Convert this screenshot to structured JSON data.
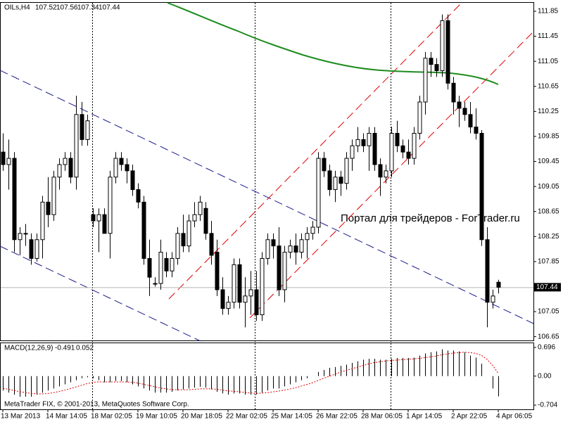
{
  "chart_data": {
    "type": "candlestick",
    "symbol": "OILs,H4",
    "categories": [
      "13 Mar 2013",
      null,
      null,
      null,
      null,
      null,
      null,
      null,
      "14 Mar 14:05",
      null,
      null,
      null,
      null,
      null,
      null,
      null,
      "18 Mar 02:05",
      null,
      null,
      null,
      null,
      null,
      null,
      null,
      "19 Mar 10:05",
      null,
      null,
      null,
      null,
      null,
      null,
      null,
      "20 Mar 18:05",
      null,
      null,
      null,
      null,
      null,
      null,
      null,
      "22 Mar 02:05",
      null,
      null,
      null,
      null,
      null,
      null,
      null,
      "25 Mar 14:05",
      null,
      null,
      null,
      null,
      null,
      null,
      null,
      "26 Mar 22:05",
      null,
      null,
      null,
      null,
      null,
      null,
      null,
      "28 Mar 06:05",
      null,
      null,
      null,
      null,
      null,
      null,
      null,
      "1 Apr 14:05",
      null,
      null,
      null,
      null,
      null,
      null,
      null,
      "2 Apr 22:05",
      null,
      null,
      null,
      null,
      null,
      null,
      null,
      "4 Apr 06:05"
    ],
    "open": [
      109.6,
      109.4,
      109.5,
      108.2,
      108.3,
      108.2,
      107.9,
      108.2,
      108.8,
      108.6,
      109.2,
      109.4,
      109.5,
      109.2,
      110.2,
      109.8,
      108.6,
      108.5,
      108.6,
      108.3,
      109.2,
      109.5,
      109.4,
      109.3,
      109.0,
      108.8,
      107.9,
      107.5,
      107.5,
      107.9,
      107.7,
      107.9,
      108.3,
      108.1,
      108.5,
      108.6,
      108.7,
      108.3,
      108.0,
      107.4,
      107.1,
      107.2,
      107.8,
      107.2,
      107.3,
      107.4,
      107.0,
      107.9,
      108.2,
      108.1,
      107.4,
      108.0,
      108.1,
      108.0,
      108.2,
      108.3,
      108.4,
      109.5,
      109.3,
      109.0,
      109.2,
      109.1,
      109.5,
      109.7,
      109.8,
      109.7,
      109.9,
      109.4,
      109.2,
      109.3,
      109.9,
      109.7,
      109.6,
      109.5,
      109.9,
      110.4,
      111.1,
      111.0,
      110.9,
      111.7,
      110.7,
      110.4,
      110.3,
      110.2,
      110.0,
      109.9,
      108.2,
      107.2,
      107.52
    ],
    "high": [
      109.9,
      109.8,
      109.6,
      108.4,
      108.45,
      108.3,
      108.3,
      108.9,
      109.2,
      109.3,
      109.5,
      109.6,
      109.6,
      110.5,
      110.4,
      110.2,
      108.7,
      108.7,
      108.7,
      109.3,
      109.6,
      109.6,
      109.5,
      109.4,
      109.1,
      108.9,
      108.2,
      107.6,
      108.2,
      108.0,
      108.0,
      108.4,
      108.6,
      108.6,
      108.8,
      108.9,
      108.8,
      108.5,
      108.2,
      107.6,
      107.3,
      107.9,
      107.9,
      107.6,
      107.7,
      107.7,
      108.0,
      108.3,
      108.3,
      108.4,
      108.1,
      108.2,
      108.3,
      108.3,
      108.4,
      108.5,
      109.6,
      109.6,
      109.4,
      109.3,
      109.3,
      109.6,
      109.8,
      110.0,
      109.9,
      110.0,
      110.0,
      109.5,
      109.4,
      110.0,
      110.1,
      109.8,
      109.8,
      110.0,
      110.5,
      111.2,
      111.2,
      111.1,
      111.8,
      111.8,
      110.8,
      110.5,
      110.4,
      110.4,
      110.3,
      109.95,
      108.4,
      107.4,
      107.56
    ],
    "low": [
      109.3,
      109.0,
      108.0,
      107.95,
      108.1,
      107.8,
      107.85,
      107.9,
      108.4,
      108.5,
      109.0,
      109.3,
      109.1,
      109.0,
      109.7,
      109.7,
      108.4,
      108.0,
      108.3,
      107.9,
      109.1,
      109.3,
      109.1,
      108.9,
      108.7,
      107.8,
      107.3,
      107.45,
      107.4,
      107.6,
      107.6,
      107.8,
      108.0,
      108.0,
      108.4,
      108.5,
      108.2,
      107.8,
      107.3,
      107.0,
      107.0,
      107.1,
      107.1,
      106.8,
      107.0,
      106.9,
      106.9,
      107.8,
      107.9,
      107.3,
      107.2,
      107.9,
      107.8,
      107.9,
      107.9,
      108.2,
      108.3,
      109.2,
      108.9,
      108.8,
      108.9,
      109.0,
      109.3,
      109.6,
      109.6,
      109.3,
      109.3,
      108.9,
      109.1,
      109.2,
      109.6,
      109.5,
      109.4,
      109.4,
      109.8,
      110.2,
      110.8,
      110.8,
      110.8,
      110.6,
      110.2,
      110.0,
      110.1,
      109.9,
      109.8,
      108.1,
      106.8,
      107.1,
      107.34
    ],
    "close": [
      109.4,
      109.5,
      108.2,
      108.3,
      108.3,
      107.9,
      108.2,
      108.8,
      108.6,
      109.2,
      109.4,
      109.5,
      109.2,
      110.2,
      109.8,
      110.1,
      108.5,
      108.6,
      108.3,
      109.2,
      109.5,
      109.4,
      109.3,
      109.0,
      108.8,
      107.9,
      107.6,
      107.5,
      108.0,
      107.7,
      107.9,
      108.3,
      108.1,
      108.5,
      108.6,
      108.8,
      108.3,
      107.95,
      107.4,
      107.1,
      107.2,
      107.8,
      107.2,
      107.3,
      107.4,
      107.0,
      107.9,
      108.2,
      108.1,
      107.4,
      108.0,
      108.1,
      108.0,
      108.2,
      108.3,
      108.4,
      109.5,
      109.3,
      109.0,
      109.2,
      109.1,
      109.5,
      109.7,
      109.8,
      109.7,
      109.9,
      109.4,
      109.2,
      109.3,
      109.9,
      109.7,
      109.6,
      109.5,
      109.9,
      110.4,
      111.1,
      111.0,
      110.9,
      111.7,
      110.7,
      110.4,
      110.3,
      110.2,
      110.0,
      109.9,
      108.2,
      107.2,
      107.3,
      107.44
    ],
    "ylim": [
      106.59,
      111.985
    ],
    "yticks": [
      111.85,
      111.45,
      111.05,
      110.65,
      110.25,
      109.85,
      109.45,
      109.05,
      108.65,
      108.25,
      107.85,
      107.05,
      106.65
    ],
    "watermark": "Портал для трейдеров - ForTrader.ru",
    "copyright": "MetaTrader FIX, © 2001-2013, MetaQuotes Software Corp.",
    "macd": {
      "title": "MACD(12,26,9)",
      "values": [
        -0.35,
        -0.4,
        -0.45,
        -0.5,
        -0.5,
        -0.5,
        -0.45,
        -0.4,
        -0.35,
        -0.3,
        -0.25,
        -0.2,
        -0.15,
        -0.1,
        -0.05,
        -0.03,
        -0.05,
        -0.1,
        -0.15,
        -0.15,
        -0.12,
        -0.12,
        -0.15,
        -0.2,
        -0.25,
        -0.3,
        -0.35,
        -0.4,
        -0.4,
        -0.4,
        -0.38,
        -0.35,
        -0.32,
        -0.3,
        -0.28,
        -0.26,
        -0.28,
        -0.32,
        -0.38,
        -0.42,
        -0.45,
        -0.42,
        -0.42,
        -0.45,
        -0.45,
        -0.45,
        -0.4,
        -0.35,
        -0.3,
        -0.3,
        -0.25,
        -0.2,
        -0.15,
        -0.1,
        -0.05,
        0.0,
        0.1,
        0.15,
        0.2,
        0.22,
        0.25,
        0.28,
        0.32,
        0.36,
        0.4,
        0.42,
        0.42,
        0.4,
        0.4,
        0.42,
        0.44,
        0.44,
        0.44,
        0.45,
        0.5,
        0.55,
        0.58,
        0.6,
        0.65,
        0.62,
        0.62,
        0.6,
        0.58,
        0.5,
        0.45,
        0.3,
        0.0,
        -0.3,
        -0.491
      ],
      "signal": [
        -0.3,
        -0.32,
        -0.35,
        -0.38,
        -0.4,
        -0.42,
        -0.43,
        -0.43,
        -0.42,
        -0.4,
        -0.37,
        -0.34,
        -0.3,
        -0.26,
        -0.22,
        -0.18,
        -0.15,
        -0.14,
        -0.14,
        -0.14,
        -0.14,
        -0.14,
        -0.14,
        -0.15,
        -0.17,
        -0.2,
        -0.23,
        -0.26,
        -0.29,
        -0.31,
        -0.33,
        -0.33,
        -0.33,
        -0.33,
        -0.32,
        -0.31,
        -0.31,
        -0.31,
        -0.32,
        -0.34,
        -0.36,
        -0.37,
        -0.38,
        -0.4,
        -0.41,
        -0.42,
        -0.41,
        -0.4,
        -0.38,
        -0.36,
        -0.34,
        -0.31,
        -0.28,
        -0.24,
        -0.2,
        -0.16,
        -0.1,
        -0.05,
        0.0,
        0.05,
        0.1,
        0.14,
        0.18,
        0.22,
        0.26,
        0.3,
        0.33,
        0.35,
        0.37,
        0.38,
        0.39,
        0.4,
        0.41,
        0.42,
        0.43,
        0.45,
        0.47,
        0.49,
        0.52,
        0.54,
        0.56,
        0.57,
        0.58,
        0.57,
        0.55,
        0.5,
        0.4,
        0.25,
        0.052
      ],
      "signal_color": "#e00000",
      "ylim": [
        -0.806,
        0.798
      ],
      "yticks": [
        0.696,
        {
          "value": 0,
          "label": "0.00"
        },
        -0.704
      ]
    }
  }
}
